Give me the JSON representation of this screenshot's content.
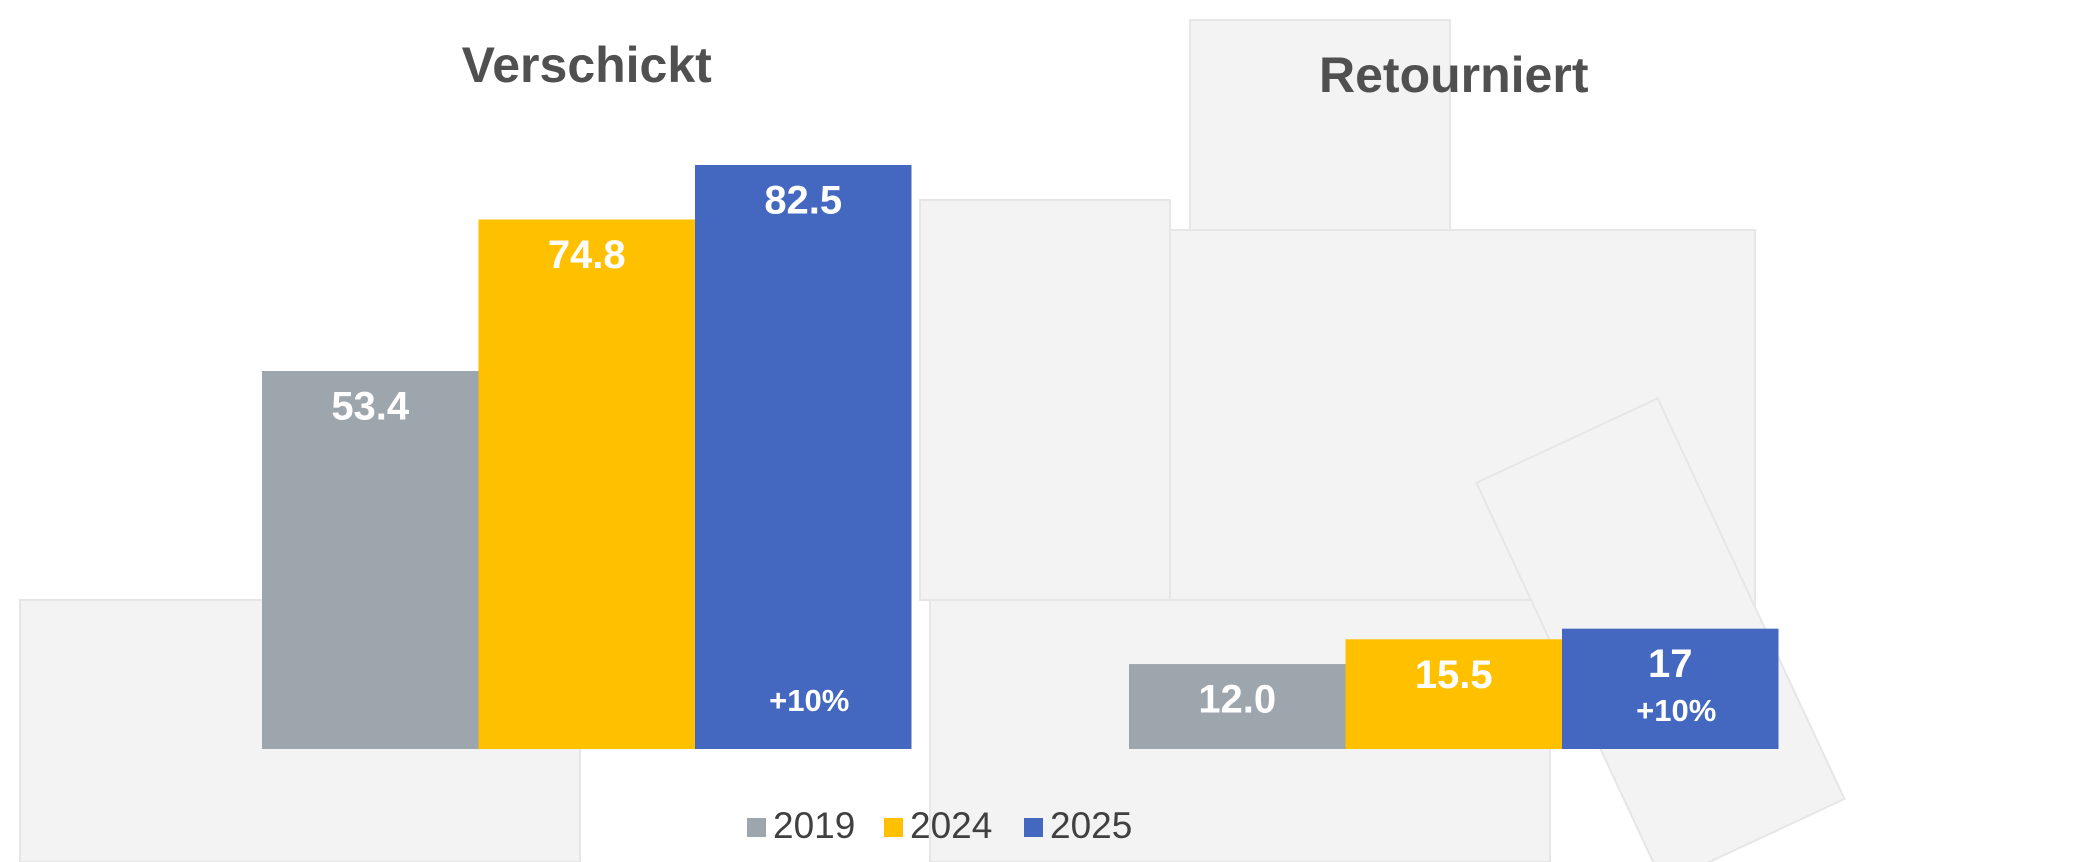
{
  "chart_data": {
    "type": "bar",
    "categories": [
      "Verschickt",
      "Retourniert"
    ],
    "series": [
      {
        "name": "2019",
        "color": "#9da5ad",
        "values": [
          53.4,
          12
        ],
        "value_labels": [
          "53.4",
          "12.0"
        ]
      },
      {
        "name": "2024",
        "color": "#ffc000",
        "values": [
          74.8,
          15.5
        ]
      },
      {
        "name": "2025",
        "color": "#4468c0",
        "values": [
          82.5,
          17
        ]
      }
    ],
    "annotations": [
      "+10%",
      "+10%"
    ],
    "legend": "bottom"
  }
}
